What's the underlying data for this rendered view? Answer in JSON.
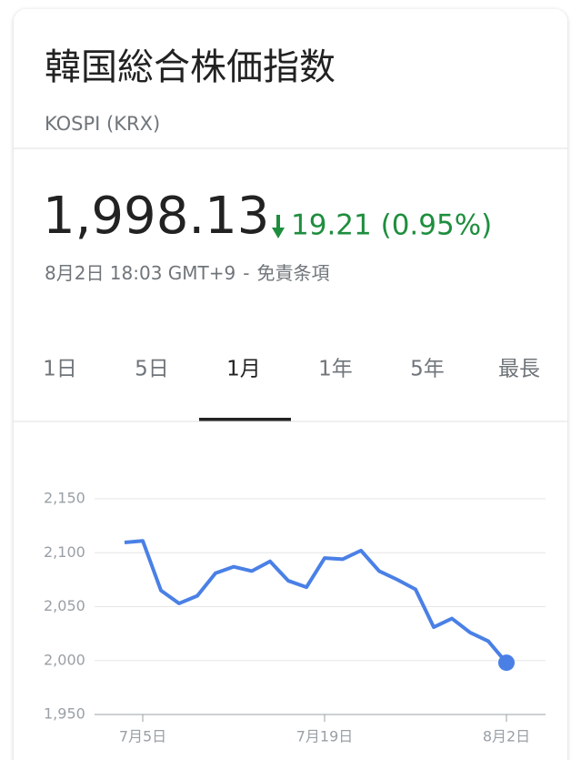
{
  "header": {
    "title": "韓国総合株価指数",
    "subtitle": "KOSPI (KRX)",
    "price": "1,998.13",
    "change": "19.21 (0.95%)",
    "timestamp": "8月2日 18:03 GMT+9",
    "separator": "-",
    "disclaimer": "免責条項"
  },
  "tabs": [
    "1日",
    "5日",
    "1月",
    "1年",
    "5年",
    "最長"
  ],
  "chart_data": {
    "type": "line",
    "categories": [
      null,
      "7月5日",
      null,
      null,
      null,
      null,
      null,
      null,
      null,
      null,
      null,
      "7月19日",
      null,
      null,
      null,
      null,
      null,
      null,
      null,
      null,
      null,
      "8月2日"
    ],
    "values": [
      2109.5,
      2111,
      2065,
      2053,
      2060,
      2081,
      2087,
      2083,
      2092,
      2074,
      2068,
      2095,
      2094,
      2102,
      2083,
      2075,
      2066,
      2031,
      2039,
      2026,
      2018,
      1998
    ],
    "color": "#4a80e6",
    "ylim": [
      1950,
      2150
    ],
    "yticks": [
      {
        "value": 1950,
        "label": "1,950"
      },
      {
        "value": 2000,
        "label": "2,000"
      },
      {
        "value": 2050,
        "label": "2,050"
      },
      {
        "value": 2100,
        "label": "2,100"
      },
      {
        "value": 2150,
        "label": "2,150"
      }
    ],
    "grid": true
  }
}
